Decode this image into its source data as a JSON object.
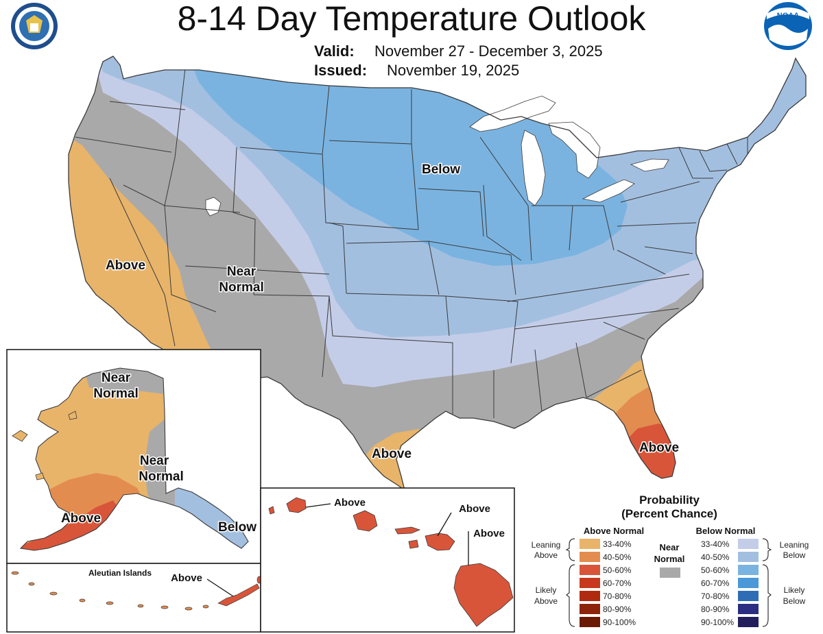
{
  "header": {
    "title": "8-14 Day Temperature Outlook",
    "valid_label": "Valid:",
    "valid_value": "November 27 - December 3, 2025",
    "issued_label": "Issued:",
    "issued_value": "November 19, 2025"
  },
  "logos": {
    "commerce_seal": "Department of Commerce seal",
    "noaa_logo": "NOAA",
    "noaa_text": "NOAA"
  },
  "colors": {
    "water": "#ffffff",
    "near": "#a9a9a9",
    "above": [
      "#e8b46a",
      "#e38c50",
      "#d8553a",
      "#c7391e",
      "#b02a10",
      "#8d2309",
      "#6a1905"
    ],
    "below": [
      "#c4cde8",
      "#a3bfe0",
      "#7ab3e0",
      "#4a98d8",
      "#2e6db5",
      "#2a2d80",
      "#231f5c"
    ],
    "border": "#3a3a3a"
  },
  "map_labels": {
    "conus_below": "Below",
    "conus_above_west": "Above",
    "conus_near_line1": "Near",
    "conus_near_line2": "Normal",
    "conus_above_tx": "Above",
    "conus_above_fl": "Above",
    "ak_near_north_1": "Near",
    "ak_near_north_2": "Normal",
    "ak_near_east_1": "Near",
    "ak_near_east_2": "Normal",
    "ak_above": "Above",
    "ak_below": "Below",
    "aleutian_title": "Aleutian Islands",
    "aleutian_above": "Above",
    "hi_above_1": "Above",
    "hi_above_2": "Above",
    "hi_above_3": "Above"
  },
  "legend": {
    "title_line1": "Probability",
    "title_line2": "(Percent Chance)",
    "above_header": "Above Normal",
    "below_header": "Below Normal",
    "near_line1": "Near",
    "near_line2": "Normal",
    "leaning_above_1": "Leaning",
    "leaning_above_2": "Above",
    "likely_above_1": "Likely",
    "likely_above_2": "Above",
    "leaning_below_1": "Leaning",
    "leaning_below_2": "Below",
    "likely_below_1": "Likely",
    "likely_below_2": "Below",
    "above_ranges": [
      "33-40%",
      "40-50%",
      "50-60%",
      "60-70%",
      "70-80%",
      "80-90%",
      "90-100%"
    ],
    "below_ranges": [
      "33-40%",
      "40-50%",
      "50-60%",
      "60-70%",
      "70-80%",
      "80-90%",
      "90-100%"
    ]
  }
}
